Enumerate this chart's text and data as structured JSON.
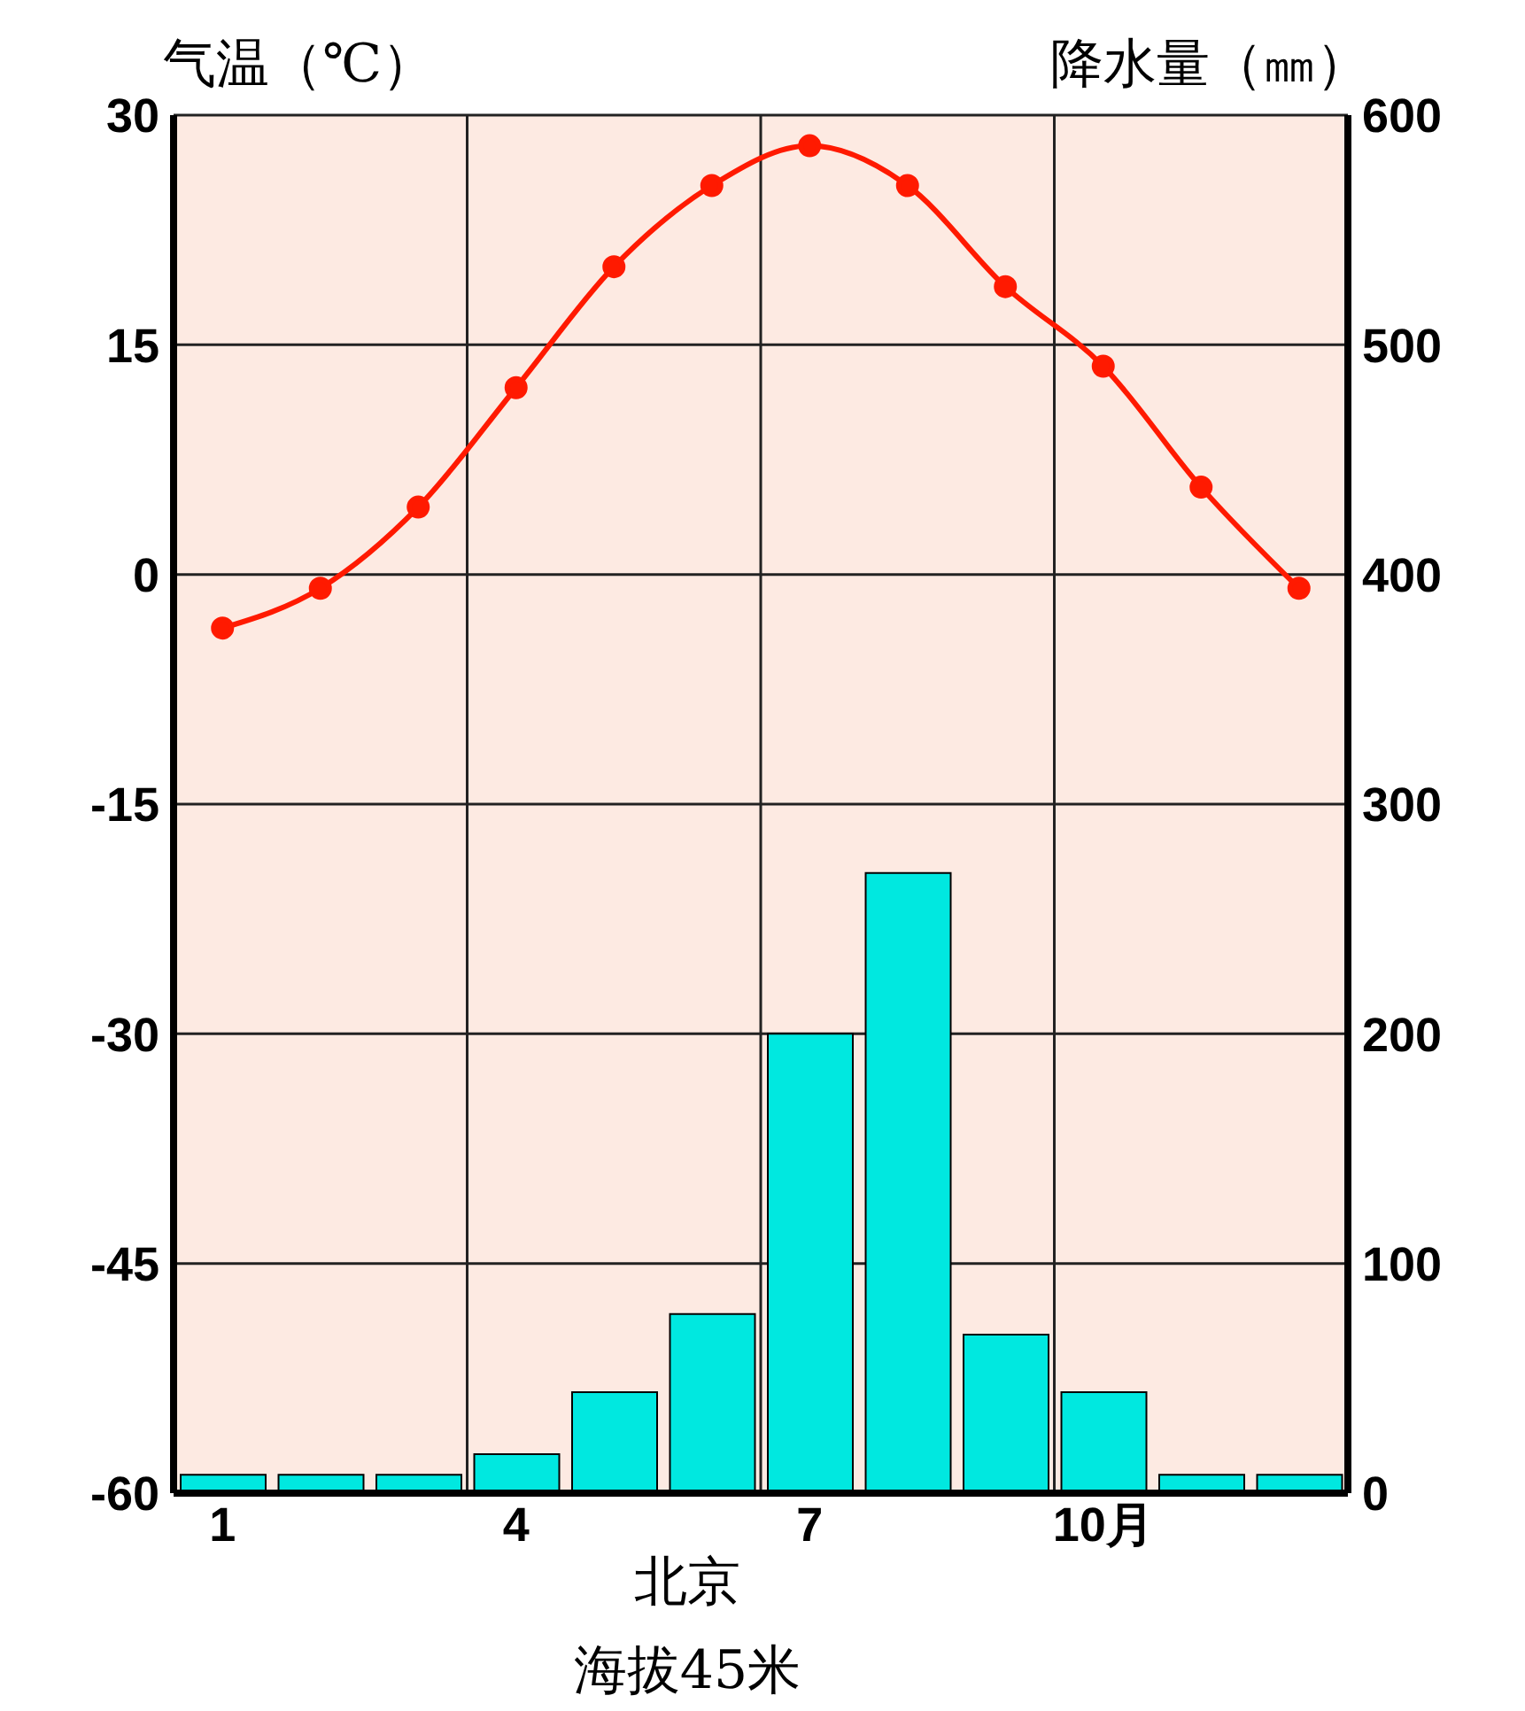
{
  "chart_data": {
    "type": "bar",
    "ylabel": "气温（℃）",
    "y2label": "降水量（㎜）",
    "categories": [
      "1",
      null,
      null,
      "4",
      null,
      null,
      "7",
      null,
      null,
      "10月",
      null,
      null
    ],
    "series": [
      {
        "name": null,
        "type": "line",
        "color": "#ff1a00",
        "values": [
          -3.5,
          -0.9,
          4.4,
          12.2,
          20.1,
          25.4,
          28.0,
          25.4,
          18.8,
          13.6,
          5.7,
          -0.9
        ]
      },
      {
        "name": null,
        "axis": "y2",
        "color": "#00e8e0",
        "values": [
          8,
          8,
          8,
          17,
          44,
          78,
          200,
          270,
          69,
          44,
          8,
          8
        ]
      }
    ],
    "ylim": [
      -60,
      30
    ],
    "yticks": [
      -60,
      -45,
      -30,
      -15,
      0,
      15,
      30
    ],
    "y2lim": [
      0,
      600
    ],
    "y2ticks": [
      0,
      100,
      200,
      300,
      400,
      500,
      600
    ],
    "grid": true,
    "marker": "circle",
    "line_style": "solid",
    "annotations": [
      "北京",
      "海拔45米"
    ]
  }
}
